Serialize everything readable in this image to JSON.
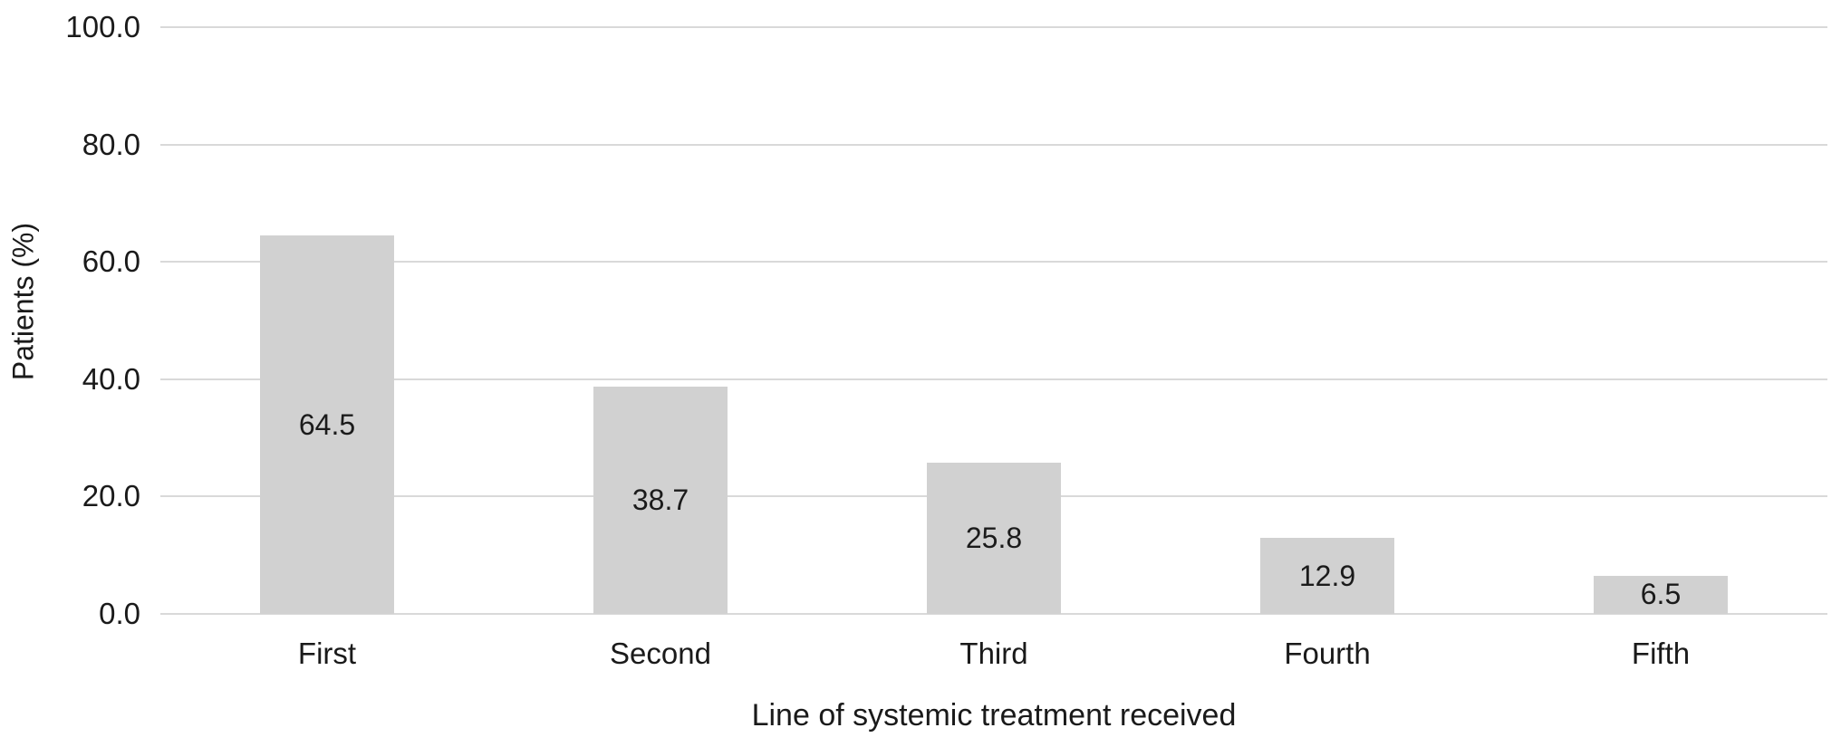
{
  "chart_data": {
    "type": "bar",
    "categories": [
      "First",
      "Second",
      "Third",
      "Fourth",
      "Fifth"
    ],
    "values": [
      64.5,
      38.7,
      25.8,
      12.9,
      6.5
    ],
    "value_labels": [
      "64.5",
      "38.7",
      "25.8",
      "12.9",
      "6.5"
    ],
    "title": "",
    "xlabel": "Line of systemic treatment received",
    "ylabel": "Patients (%)",
    "ylim": [
      0,
      100
    ],
    "yticks": [
      0,
      20,
      40,
      60,
      80,
      100
    ],
    "ytick_labels": [
      "0.0",
      "20.0",
      "40.0",
      "60.0",
      "80.0",
      "100.0"
    ],
    "grid": "horizontal",
    "legend": "none",
    "bar_color": "#d1d1d1",
    "gridline_color": "#d9d9d9",
    "text_color": "#1a1a1a",
    "background_color": "#ffffff"
  }
}
